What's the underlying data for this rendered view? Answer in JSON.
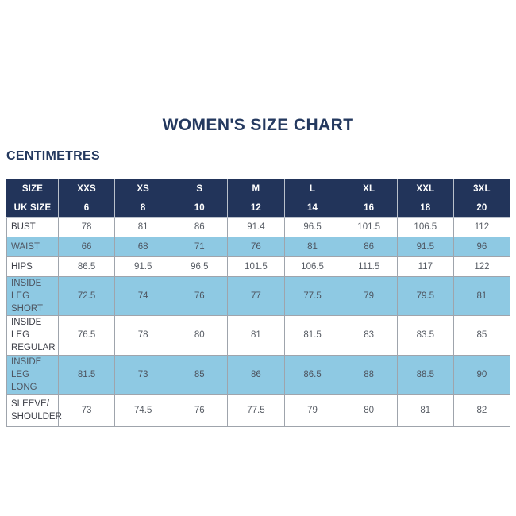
{
  "page": {
    "title": "WOMEN'S SIZE CHART",
    "subtitle": "CENTIMETRES"
  },
  "colors": {
    "navy_header": "#22345a",
    "light_blue_row": "#8ec9e3",
    "white_row": "#ffffff",
    "title_text": "#24395f",
    "cell_border": "#9fa4ac",
    "header_text": "#ffffff",
    "value_text": "#575c64"
  },
  "chart_data": {
    "type": "table",
    "title": "WOMEN'S SIZE CHART",
    "units_label": "CENTIMETRES",
    "header_rows": [
      {
        "label": "SIZE",
        "values": [
          "XXS",
          "XS",
          "S",
          "M",
          "L",
          "XL",
          "XXL",
          "3XL"
        ]
      },
      {
        "label": "UK SIZE",
        "values": [
          "6",
          "8",
          "10",
          "12",
          "14",
          "16",
          "18",
          "20"
        ]
      }
    ],
    "rows": [
      {
        "label": "BUST",
        "display_label": "BUST",
        "values": [
          "78",
          "81",
          "86",
          "91.4",
          "96.5",
          "101.5",
          "106.5",
          "112"
        ]
      },
      {
        "label": "WAIST",
        "display_label": "WAIST",
        "values": [
          "66",
          "68",
          "71",
          "76",
          "81",
          "86",
          "91.5",
          "96"
        ]
      },
      {
        "label": "HIPS",
        "display_label": "HIPS",
        "values": [
          "86.5",
          "91.5",
          "96.5",
          "101.5",
          "106.5",
          "111.5",
          "117",
          "122"
        ]
      },
      {
        "label": "INSIDE LEG SHORT",
        "display_label": "INSIDE LEG\nSHORT",
        "values": [
          "72.5",
          "74",
          "76",
          "77",
          "77.5",
          "79",
          "79.5",
          "81"
        ]
      },
      {
        "label": "INSIDE LEG REGULAR",
        "display_label": "INSIDE LEG\nREGULAR",
        "values": [
          "76.5",
          "78",
          "80",
          "81",
          "81.5",
          "83",
          "83.5",
          "85"
        ]
      },
      {
        "label": "INSIDE LEG LONG",
        "display_label": "INSIDE LEG\nLONG",
        "values": [
          "81.5",
          "73",
          "85",
          "86",
          "86.5",
          "88",
          "88.5",
          "90"
        ]
      },
      {
        "label": "SLEEVE/SHOULDER",
        "display_label": "SLEEVE/\nSHOULDER",
        "values": [
          "73",
          "74.5",
          "76",
          "77.5",
          "79",
          "80",
          "81",
          "82"
        ]
      }
    ]
  }
}
